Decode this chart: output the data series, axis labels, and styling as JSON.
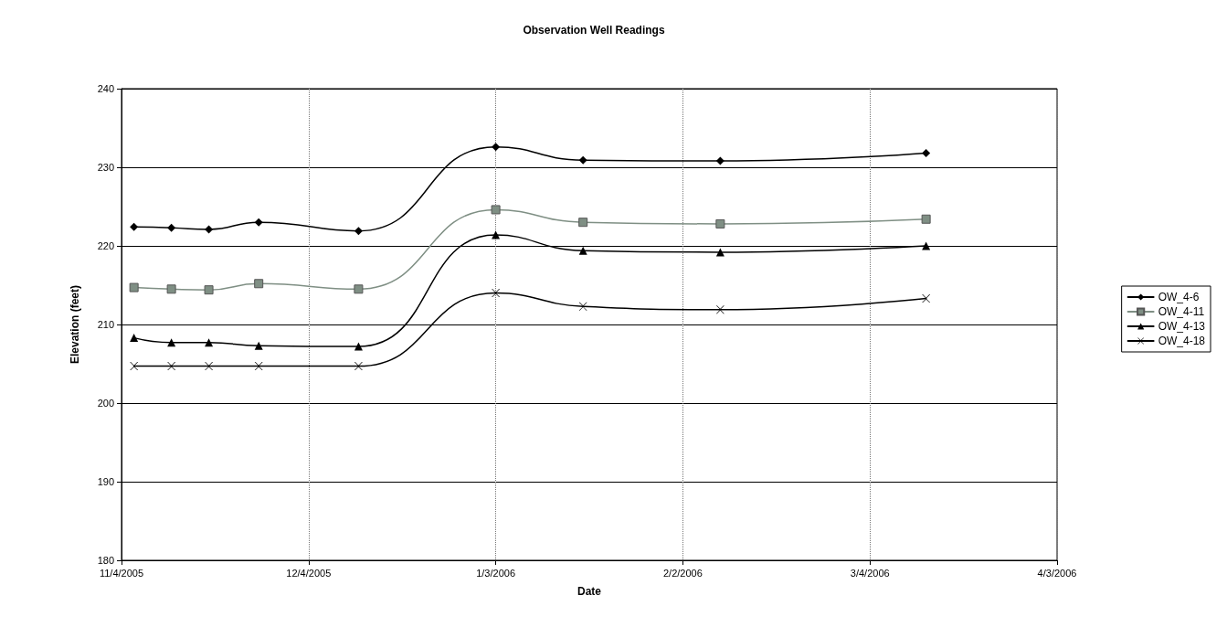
{
  "chart_data": {
    "type": "line",
    "title": "Observation Well Readings",
    "xlabel": "Date",
    "ylabel": "Elevation (feet)",
    "x": [
      "2005-11-06",
      "2005-11-12",
      "2005-11-18",
      "2005-11-26",
      "2005-12-12",
      "2006-01-03",
      "2006-01-17",
      "2006-02-08",
      "2006-03-13"
    ],
    "series": [
      {
        "name": "OW_4-6",
        "color": "#000000",
        "marker": "diamond",
        "values": [
          222.4,
          222.3,
          222.1,
          223.0,
          221.9,
          232.6,
          230.9,
          230.8,
          231.8
        ]
      },
      {
        "name": "OW_4-11",
        "color": "#7f8f84",
        "marker": "square",
        "values": [
          214.7,
          214.5,
          214.4,
          215.2,
          214.5,
          224.6,
          223.0,
          222.8,
          223.4
        ]
      },
      {
        "name": "OW_4-13",
        "color": "#000000",
        "marker": "triangle",
        "values": [
          208.3,
          207.7,
          207.7,
          207.3,
          207.2,
          221.4,
          219.4,
          219.2,
          220.0
        ]
      },
      {
        "name": "OW_4-18",
        "color": "#000000",
        "marker": "cross",
        "values": [
          204.7,
          204.7,
          204.7,
          204.7,
          204.7,
          214.0,
          212.3,
          211.9,
          213.3
        ]
      }
    ],
    "xlim": [
      "2005-11-04",
      "2006-04-03"
    ],
    "xticks": [
      {
        "value": "2005-11-04",
        "label": "11/4/2005"
      },
      {
        "value": "2005-12-04",
        "label": "12/4/2005"
      },
      {
        "value": "2006-01-03",
        "label": "1/3/2006"
      },
      {
        "value": "2006-02-02",
        "label": "2/2/2006"
      },
      {
        "value": "2006-03-04",
        "label": "3/4/2006"
      },
      {
        "value": "2006-04-03",
        "label": "4/3/2006"
      }
    ],
    "ylim": [
      180,
      240
    ],
    "yticks": [
      180,
      190,
      200,
      210,
      220,
      230,
      240
    ],
    "grid": true,
    "legend": "right",
    "line_style": "solid"
  }
}
